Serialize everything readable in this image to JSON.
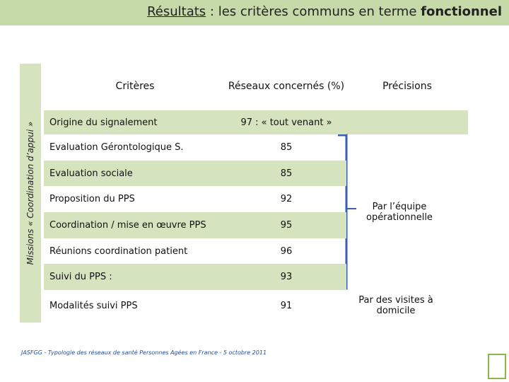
{
  "header": {
    "title_underlined": "Résultats",
    "title_middle": ": les critères communs en terme",
    "title_bold": "fonctionnel"
  },
  "side_label": "Missions « Coordination d’appui »",
  "table": {
    "headers": [
      "Critères",
      "Réseaux concernés (%)",
      "Précisions"
    ],
    "rows": [
      [
        "Origine du signalement",
        "97 : « tout venant »"
      ],
      [
        "Evaluation Gérontologique S.",
        "85"
      ],
      [
        "Evaluation sociale",
        "85"
      ],
      [
        "Proposition du PPS",
        "92"
      ],
      [
        "Coordination / mise en œuvre PPS",
        "95"
      ],
      [
        "Réunions coordination patient",
        "96"
      ],
      [
        "Suivi du PPS :",
        "93"
      ],
      [
        "Modalités suivi PPS",
        "91"
      ]
    ]
  },
  "precisions": [
    "Par l’équipe opérationnelle",
    "Par des visites à domicile"
  ],
  "footer": "JASFGG - Typologie des réseaux de santé Personnes Agées en France - 5 octobre 2011"
}
